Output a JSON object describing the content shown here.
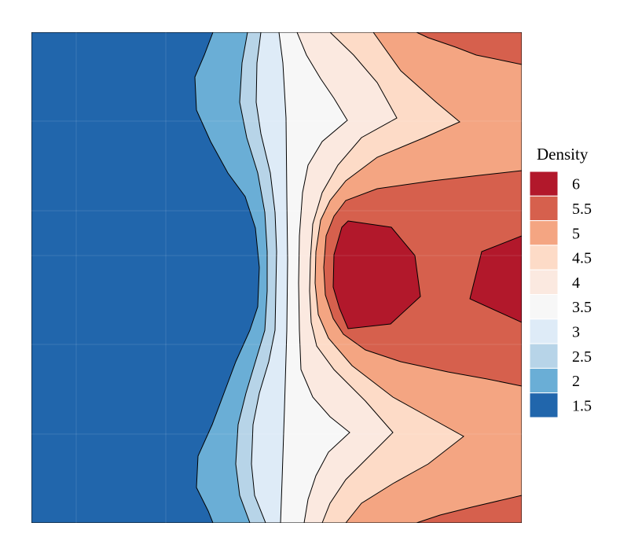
{
  "chart_data": {
    "type": "contour",
    "title": "",
    "xlabel": "",
    "ylabel": "",
    "legend": {
      "title": "Density",
      "placement": "right",
      "labels": [
        "6",
        "5.5",
        "5",
        "4.5",
        "4",
        "3.5",
        "3",
        "2.5",
        "2",
        "1.5"
      ]
    },
    "levels": [
      {
        "label": "6",
        "color": "#b2182b"
      },
      {
        "label": "5.5",
        "color": "#d6604d"
      },
      {
        "label": "5",
        "color": "#f4a582"
      },
      {
        "label": "4.5",
        "color": "#fddbc7"
      },
      {
        "label": "4",
        "color": "#fbe9e0"
      },
      {
        "label": "3.5",
        "color": "#f7f7f7"
      },
      {
        "label": "3",
        "color": "#deebf7"
      },
      {
        "label": "2.5",
        "color": "#b7d4e8"
      },
      {
        "label": "2",
        "color": "#6aaed6"
      },
      {
        "label": "1.5",
        "color": "#2166ac"
      }
    ],
    "grid": true
  }
}
